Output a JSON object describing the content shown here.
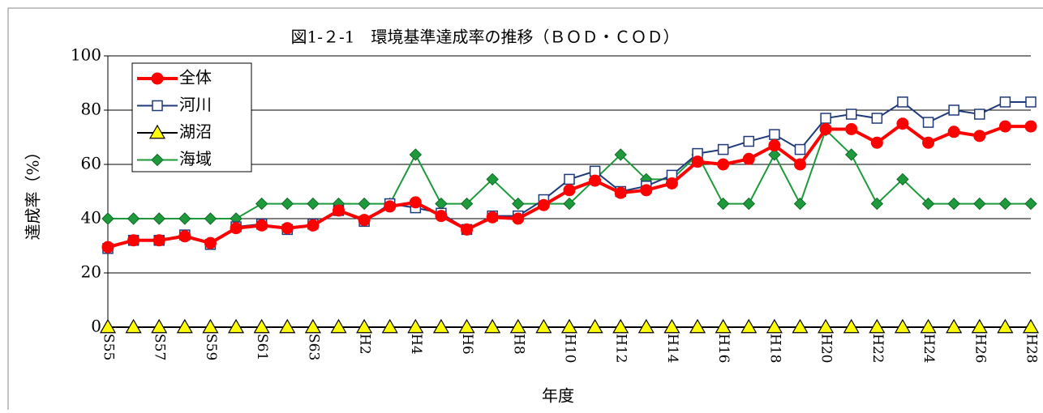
{
  "chart_data": {
    "type": "line",
    "title": "図1-２-1　環境基準達成率の推移（ＢＯＤ・ＣＯＤ）",
    "y_label": "達成率（%）",
    "x_label": "年度",
    "categories": [
      "S55",
      null,
      "S57",
      null,
      "S59",
      null,
      "S61",
      null,
      "S63",
      null,
      "H2",
      null,
      "H4",
      null,
      "H6",
      null,
      "H8",
      null,
      "H10",
      null,
      "H12",
      null,
      "H14",
      null,
      "H16",
      null,
      "H18",
      null,
      "H20",
      null,
      "H22",
      null,
      "H24",
      null,
      "H26",
      null,
      "H28"
    ],
    "series": [
      {
        "name": "全体",
        "color": "#ff0000",
        "marker": "circle",
        "values": [
          29.5,
          32,
          32,
          33.5,
          31,
          36.5,
          37.5,
          36.5,
          37.5,
          43,
          39.5,
          44.5,
          46,
          41,
          36,
          40.5,
          40,
          45,
          50.5,
          54,
          49.5,
          50.5,
          53,
          61,
          60,
          62,
          67,
          60,
          73,
          73,
          68,
          75,
          68,
          72,
          70.5,
          74,
          74
        ]
      },
      {
        "name": "河川",
        "color": "#1f3a7a",
        "marker": "square",
        "values": [
          29,
          32,
          32,
          34,
          30.5,
          37,
          38,
          36,
          38,
          43,
          39,
          45.5,
          44,
          42,
          36,
          41,
          41,
          47,
          54.5,
          57.5,
          50,
          52,
          56,
          64,
          65.5,
          68.5,
          71,
          65.5,
          77,
          78.5,
          77,
          83,
          75.5,
          80,
          78.5,
          83,
          83
        ]
      },
      {
        "name": "湖沼",
        "color": "#000000",
        "marker": "triangle",
        "values": [
          0,
          0,
          0,
          0,
          0,
          0,
          0,
          0,
          0,
          0,
          0,
          0,
          0,
          0,
          0,
          0,
          0,
          0,
          0,
          0,
          0,
          0,
          0,
          0,
          0,
          0,
          0,
          0,
          0,
          0,
          0,
          0,
          0,
          0,
          0,
          0,
          0
        ]
      },
      {
        "name": "海域",
        "color": "#1e9a3c",
        "marker": "diamond",
        "values": [
          40,
          40,
          40,
          40,
          40,
          40,
          45.5,
          45.5,
          45.5,
          45.5,
          45.5,
          45.5,
          63.6,
          45.5,
          45.5,
          54.5,
          45.5,
          45.5,
          45.5,
          54.5,
          63.6,
          54.5,
          54.5,
          63.6,
          45.5,
          45.5,
          63.6,
          45.5,
          72.7,
          63.6,
          45.5,
          54.5,
          45.5,
          45.5,
          45.5,
          45.5,
          45.5
        ]
      }
    ],
    "ylim": [
      0,
      100
    ],
    "yticks": [
      0,
      20,
      40,
      60,
      80,
      100
    ],
    "grid": true,
    "legend": "top-left"
  }
}
